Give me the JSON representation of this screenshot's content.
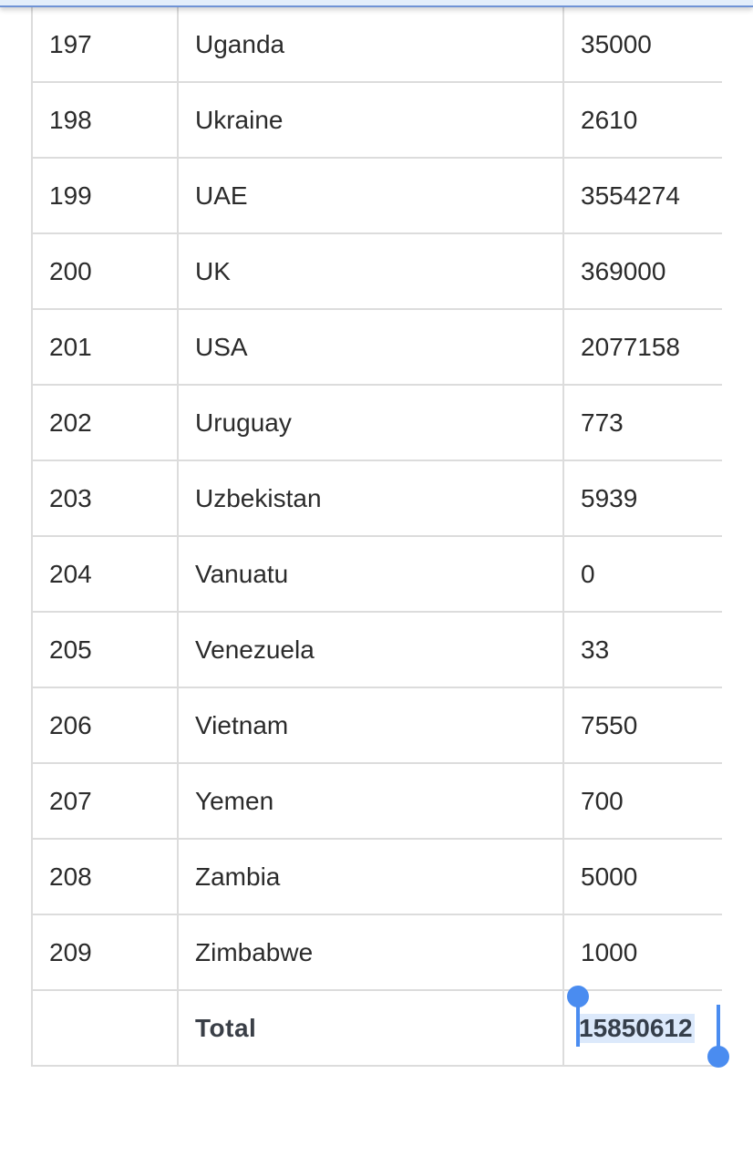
{
  "rows": [
    {
      "num": "197",
      "country": "Uganda",
      "value": "35000"
    },
    {
      "num": "198",
      "country": "Ukraine",
      "value": "2610"
    },
    {
      "num": "199",
      "country": "UAE",
      "value": "3554274"
    },
    {
      "num": "200",
      "country": "UK",
      "value": "369000"
    },
    {
      "num": "201",
      "country": "USA",
      "value": "2077158"
    },
    {
      "num": "202",
      "country": "Uruguay",
      "value": "773"
    },
    {
      "num": "203",
      "country": "Uzbekistan",
      "value": "5939"
    },
    {
      "num": "204",
      "country": "Vanuatu",
      "value": "0"
    },
    {
      "num": "205",
      "country": "Venezuela",
      "value": "33"
    },
    {
      "num": "206",
      "country": "Vietnam",
      "value": "7550"
    },
    {
      "num": "207",
      "country": "Yemen",
      "value": "700"
    },
    {
      "num": "208",
      "country": "Zambia",
      "value": "5000"
    },
    {
      "num": "209",
      "country": "Zimbabwe",
      "value": "1000"
    }
  ],
  "total": {
    "label": "Total",
    "value": "15850612"
  },
  "colors": {
    "selection": "#dce9fb",
    "handle": "#4a8cf0",
    "border": "#dcdcdc"
  }
}
